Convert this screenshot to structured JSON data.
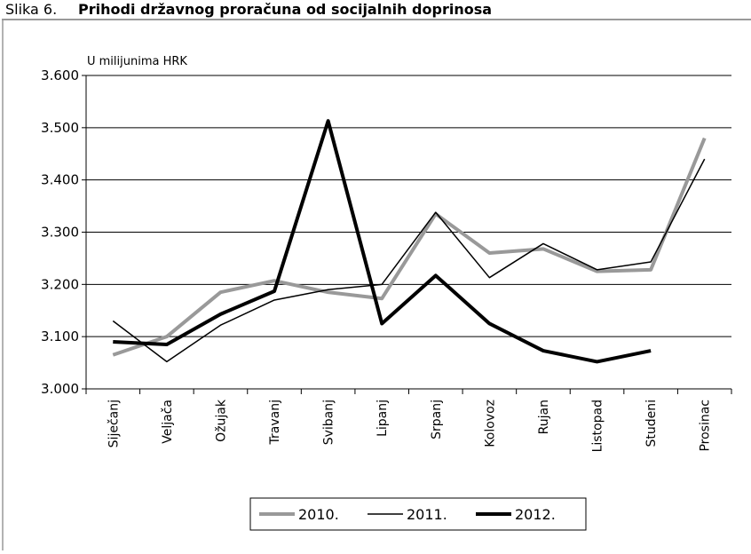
{
  "chart_data": {
    "type": "line",
    "figure_label": "Slika 6.",
    "title": "Prihodi državnog proračuna od socijalnih doprinosa",
    "y_label": "U milijunima HRK",
    "categories": [
      "Siječanj",
      "Veljača",
      "Ožujak",
      "Travanj",
      "Svibanj",
      "Lipanj",
      "Srpanj",
      "Kolovoz",
      "Rujan",
      "Listopad",
      "Studeni",
      "Prosinac"
    ],
    "series": [
      {
        "name": "2010.",
        "color": "#999999",
        "width": 4,
        "values": [
          3065,
          3100,
          3185,
          3207,
          3185,
          3173,
          3335,
          3260,
          3268,
          3225,
          3228,
          3480
        ]
      },
      {
        "name": "2011.",
        "color": "#000000",
        "width": 1.5,
        "values": [
          3130,
          3052,
          3122,
          3170,
          3190,
          3200,
          3338,
          3213,
          3278,
          3228,
          3243,
          3440
        ]
      },
      {
        "name": "2012.",
        "color": "#000000",
        "width": 4,
        "values": [
          3090,
          3085,
          3143,
          3187,
          3513,
          3125,
          3217,
          3125,
          3073,
          3052,
          3073,
          null
        ]
      }
    ],
    "ylim": [
      3000,
      3600
    ],
    "yticks": [
      {
        "value": 3000,
        "label": "3.000"
      },
      {
        "value": 3100,
        "label": "3.100"
      },
      {
        "value": 3200,
        "label": "3.200"
      },
      {
        "value": 3300,
        "label": "3.300"
      },
      {
        "value": 3400,
        "label": "3.400"
      },
      {
        "value": 3500,
        "label": "3.500"
      },
      {
        "value": 3600,
        "label": "3.600"
      }
    ],
    "grid": true,
    "legend": "bottom"
  }
}
